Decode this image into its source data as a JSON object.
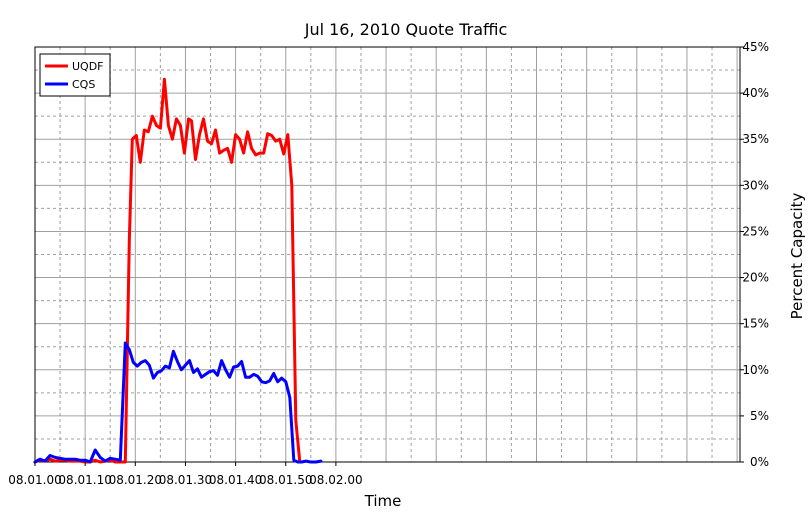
{
  "chart_data": {
    "type": "line",
    "title": "Jul 16, 2010 Quote Traffic",
    "xlabel": "Time",
    "ylabel": "Percent Capacity",
    "x_range": [
      0,
      28.5
    ],
    "ylim": [
      0,
      45
    ],
    "x_ticks": [
      {
        "value": 0,
        "label": "08.01.00"
      },
      {
        "value": 5,
        "label": "08.01.10"
      },
      {
        "value": 10,
        "label": "08.01.20"
      },
      {
        "value": 15,
        "label": "08.01.30"
      },
      {
        "value": 20,
        "label": "08.01.40"
      },
      {
        "value": 25,
        "label": "08.01.50"
      },
      {
        "value": 30,
        "label": "08.02.00"
      }
    ],
    "y_ticks": [
      {
        "value": 0,
        "label": "0%"
      },
      {
        "value": 5,
        "label": "5%"
      },
      {
        "value": 10,
        "label": "10%"
      },
      {
        "value": 15,
        "label": "15%"
      },
      {
        "value": 20,
        "label": "20%"
      },
      {
        "value": 25,
        "label": "25%"
      },
      {
        "value": 30,
        "label": "30%"
      },
      {
        "value": 35,
        "label": "35%"
      },
      {
        "value": 40,
        "label": "40%"
      },
      {
        "value": 45,
        "label": "45%"
      }
    ],
    "y_axis_side": "right",
    "grid": true,
    "legend_position": "top-left",
    "series": [
      {
        "name": "UQDF",
        "color": "#ff0000",
        "points": [
          [
            0.0,
            0.0
          ],
          [
            0.5,
            0.2
          ],
          [
            1.0,
            0.1
          ],
          [
            1.5,
            0.3
          ],
          [
            2.0,
            0.1
          ],
          [
            2.5,
            0.2
          ],
          [
            3.0,
            0.2
          ],
          [
            3.5,
            0.1
          ],
          [
            4.0,
            0.1
          ],
          [
            4.5,
            0.1
          ],
          [
            5.0,
            0.0
          ],
          [
            5.5,
            0.0
          ],
          [
            6.0,
            0.2
          ],
          [
            6.5,
            0.0
          ],
          [
            7.0,
            0.1
          ],
          [
            7.5,
            0.2
          ],
          [
            8.0,
            0.0
          ],
          [
            8.5,
            0.0
          ],
          [
            9.0,
            0.0
          ],
          [
            9.4,
            24.0
          ],
          [
            9.7,
            35.0
          ],
          [
            10.1,
            35.4
          ],
          [
            10.5,
            32.5
          ],
          [
            10.9,
            36.0
          ],
          [
            11.3,
            35.8
          ],
          [
            11.7,
            37.5
          ],
          [
            12.1,
            36.5
          ],
          [
            12.5,
            36.2
          ],
          [
            12.9,
            41.5
          ],
          [
            13.3,
            36.5
          ],
          [
            13.7,
            35.0
          ],
          [
            14.1,
            37.2
          ],
          [
            14.5,
            36.5
          ],
          [
            14.9,
            33.5
          ],
          [
            15.3,
            37.2
          ],
          [
            15.6,
            37.0
          ],
          [
            16.0,
            32.8
          ],
          [
            16.4,
            35.5
          ],
          [
            16.8,
            37.2
          ],
          [
            17.2,
            34.8
          ],
          [
            17.6,
            34.5
          ],
          [
            18.0,
            36.0
          ],
          [
            18.4,
            33.5
          ],
          [
            18.8,
            33.8
          ],
          [
            19.2,
            34.0
          ],
          [
            19.6,
            32.5
          ],
          [
            20.0,
            35.5
          ],
          [
            20.4,
            35.0
          ],
          [
            20.8,
            33.5
          ],
          [
            21.2,
            35.8
          ],
          [
            21.6,
            34.0
          ],
          [
            22.0,
            33.3
          ],
          [
            22.4,
            33.5
          ],
          [
            22.8,
            33.5
          ],
          [
            23.2,
            35.6
          ],
          [
            23.6,
            35.4
          ],
          [
            24.0,
            34.8
          ],
          [
            24.4,
            35.0
          ],
          [
            24.8,
            33.4
          ],
          [
            25.2,
            35.5
          ],
          [
            25.6,
            30.0
          ],
          [
            26.0,
            4.5
          ],
          [
            26.4,
            0.0
          ]
        ]
      },
      {
        "name": "CQS",
        "color": "#0000ff",
        "points": [
          [
            0.0,
            0.0
          ],
          [
            0.5,
            0.3
          ],
          [
            1.0,
            0.1
          ],
          [
            1.5,
            0.7
          ],
          [
            2.0,
            0.5
          ],
          [
            2.5,
            0.4
          ],
          [
            3.0,
            0.3
          ],
          [
            3.5,
            0.3
          ],
          [
            4.0,
            0.3
          ],
          [
            4.5,
            0.2
          ],
          [
            5.0,
            0.2
          ],
          [
            5.5,
            0.0
          ],
          [
            6.0,
            1.3
          ],
          [
            6.5,
            0.5
          ],
          [
            7.0,
            0.1
          ],
          [
            7.5,
            0.4
          ],
          [
            8.0,
            0.3
          ],
          [
            8.5,
            0.2
          ],
          [
            9.0,
            12.9
          ],
          [
            9.4,
            12.2
          ],
          [
            9.8,
            10.8
          ],
          [
            10.2,
            10.4
          ],
          [
            10.6,
            10.8
          ],
          [
            11.0,
            11.0
          ],
          [
            11.4,
            10.5
          ],
          [
            11.8,
            9.1
          ],
          [
            12.2,
            9.7
          ],
          [
            12.6,
            9.9
          ],
          [
            13.0,
            10.4
          ],
          [
            13.4,
            10.2
          ],
          [
            13.8,
            12.0
          ],
          [
            14.2,
            10.9
          ],
          [
            14.6,
            10.0
          ],
          [
            15.0,
            10.5
          ],
          [
            15.4,
            11.0
          ],
          [
            15.8,
            9.7
          ],
          [
            16.2,
            10.1
          ],
          [
            16.6,
            9.2
          ],
          [
            17.0,
            9.5
          ],
          [
            17.4,
            9.8
          ],
          [
            17.8,
            9.9
          ],
          [
            18.2,
            9.4
          ],
          [
            18.6,
            11.0
          ],
          [
            19.0,
            10.0
          ],
          [
            19.4,
            9.2
          ],
          [
            19.8,
            10.3
          ],
          [
            20.2,
            10.4
          ],
          [
            20.6,
            10.9
          ],
          [
            21.0,
            9.2
          ],
          [
            21.4,
            9.2
          ],
          [
            21.8,
            9.5
          ],
          [
            22.2,
            9.3
          ],
          [
            22.6,
            8.7
          ],
          [
            23.0,
            8.6
          ],
          [
            23.4,
            8.8
          ],
          [
            23.8,
            9.6
          ],
          [
            24.2,
            8.7
          ],
          [
            24.6,
            9.1
          ],
          [
            25.0,
            8.7
          ],
          [
            25.4,
            7.0
          ],
          [
            25.8,
            0.2
          ],
          [
            26.2,
            0.0
          ],
          [
            26.6,
            0.0
          ],
          [
            27.0,
            0.1
          ],
          [
            27.5,
            0.0
          ],
          [
            28.0,
            0.0
          ],
          [
            28.5,
            0.1
          ]
        ]
      }
    ]
  }
}
